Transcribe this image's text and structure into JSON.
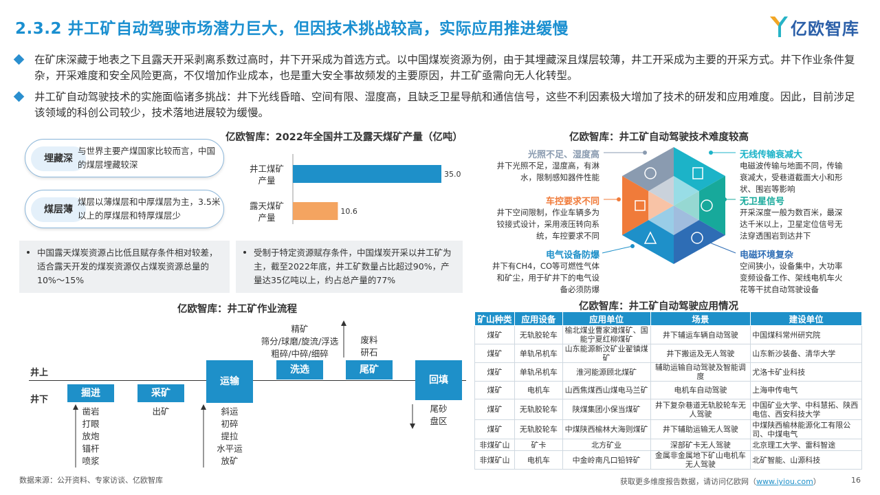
{
  "header": {
    "title": "2.3.2 井工矿自动驾驶市场潜力巨大，但因技术挑战较高，实际应用推进缓慢",
    "logo_text": "亿欧智库"
  },
  "bullets": [
    "在矿床深藏于地表之下且露天开采剥离系数过高时，井下开采成为首选方式。以中国煤炭资源为例，由于其埋藏深且煤层较薄，井工开采成为主要的开采方式。井下作业条件复杂，开采难度和安全风险更高，不仅增加作业成本，也是重大安全事故频发的主要原因，井工矿亟需向无人化转型。",
    "井工矿自动驾驶技术的实施面临诸多挑战：井下光线昏暗、空间有限、湿度高，且缺乏卫星导航和通信信号，这些不利因素极大增加了技术的研发和应用难度。因此，目前涉足该领域的科创公司较少，技术落地进展较为缓慢。"
  ],
  "reasons": [
    {
      "label": "埋藏深",
      "desc": "与世界主要产煤国家比较而言，中国的煤层埋藏较深"
    },
    {
      "label": "煤层薄",
      "desc": "煤层以薄煤层和中厚煤层为主，3.5米以上的厚煤层和特厚煤层少"
    }
  ],
  "notes": [
    "中国露天煤炭资源占比低且赋存条件相对较差，适合露天开发的煤炭资源仅占煤炭资源总量的10%～15%",
    "受制于特定资源赋存条件，中国煤炭开采以井工矿为主，截至2022年底，井工矿数量占比超过90%，产量达35亿吨以上，约占总产量的77%"
  ],
  "chart_data": {
    "type": "bar",
    "orientation": "horizontal",
    "title": "亿欧智库：2022年全国井工及露天煤矿产量（亿吨）",
    "categories": [
      "井工煤矿产量",
      "露天煤矿产量"
    ],
    "category_lines": [
      [
        "井工煤矿",
        "产量"
      ],
      [
        "露天煤矿",
        "产量"
      ]
    ],
    "values": [
      35.0,
      10.6
    ],
    "value_labels": [
      "35.0",
      "10.6"
    ],
    "colors": [
      "#1e90c9",
      "#f4a460"
    ],
    "xlim": [
      0,
      35
    ],
    "grid": false,
    "legend": "none"
  },
  "process": {
    "title": "亿欧智库：井工矿作业流程",
    "above_label": "井上",
    "below_label": "井下",
    "steps": [
      {
        "name": "掘进",
        "subs": [
          "凿岩",
          "打眼",
          "放炮",
          "锚杆",
          "喷浆"
        ]
      },
      {
        "name": "采矿",
        "subs": [
          "出矿"
        ]
      },
      {
        "name": "运输",
        "subs": [
          "斜运",
          "初碎",
          "提拉",
          "水平运",
          "放矿"
        ]
      },
      {
        "name": "洗选",
        "subs": [
          "精矿",
          "筛分/球磨/旋流/浮选",
          "粗碎/中碎/细碎"
        ]
      },
      {
        "name": "尾矿",
        "subs": [
          "废料",
          "研石"
        ]
      },
      {
        "name": "回填",
        "subs": [
          "尾砂",
          "盘区"
        ]
      }
    ]
  },
  "difficulty": {
    "title": "亿欧智库：井工矿自动驾驶技术难度较高",
    "items": [
      {
        "name": "光照不足、湿度高",
        "desc": "井下光照不足，湿度高，有淋水，限制感知器件性能",
        "color": "#8a9bb0",
        "icon": "light-icon"
      },
      {
        "name": "车控要求不同",
        "desc": "井下空间限制，作业车辆多为铰接式设计，采用液压转向系统，车控要求不同",
        "color": "#f07b3a",
        "icon": "steering-icon"
      },
      {
        "name": "电气设备防爆",
        "desc": "井下有CH4，CO等可燃性气体和矿尘，用于矿井下的电气设备必须防爆",
        "color": "#1e90c9",
        "icon": "explosion-icon"
      },
      {
        "name": "无线传输衰减大",
        "desc": "电磁波传输与地面不同，传输衰减大，受巷道截面大小和形状、围岩等影响",
        "color": "#1cb3c8",
        "icon": "signal-icon"
      },
      {
        "name": "无卫星信号",
        "desc": "开采深度一般为数百米，最深达千米以上，卫星定位信号无法穿透围岩到达井下",
        "color": "#17a99b",
        "icon": "satellite-icon"
      },
      {
        "name": "电磁环境复杂",
        "desc": "空间狭小，设备集中，大功率变频设备工作、架线电机车火花等干扰自动驾驶设备",
        "color": "#2e6db5",
        "icon": "emi-icon"
      }
    ]
  },
  "application": {
    "title": "亿欧智库：井工矿自动驾驶应用情况",
    "headers": [
      "矿山种类",
      "应用设备",
      "应用单位",
      "场景",
      "建设单位"
    ],
    "rows": [
      [
        "煤矿",
        "无轨胶轮车",
        "榆北煤业曹家滩煤矿、国能宁夏红柳煤矿",
        "井下辅运车辆自动驾驶",
        "中国煤科常州研究院"
      ],
      [
        "煤矿",
        "单轨吊机车",
        "山东能源新汶矿业翟镇煤矿",
        "井下搬运及无人驾驶",
        "山东新沙装备、清华大学"
      ],
      [
        "煤矿",
        "单轨吊机车",
        "淮河能源顾北煤矿",
        "辅助运输自动驾驶及智能调度",
        "尤洛卡矿业科技"
      ],
      [
        "煤矿",
        "电机车",
        "山西焦煤西山煤电马兰矿",
        "电机车自动驾驶",
        "上海申传电气"
      ],
      [
        "煤矿",
        "无轨胶轮车",
        "陕煤集团小保当煤矿",
        "井下复杂巷道无轨胶轮车无人驾驶",
        "中国矿业大学、中科慧拓、陕西电信、西安科技大学"
      ],
      [
        "煤矿",
        "无轨胶轮车",
        "中煤陕西榆林大海则煤矿",
        "井下辅助运输无人驾驶",
        "中煤陕西榆林能源化工有限公司、中煤电气"
      ],
      [
        "非煤矿山",
        "矿卡",
        "北方矿业",
        "深部矿卡无人驾驶",
        "北京理工大学、雷科智途"
      ],
      [
        "非煤矿山",
        "电机车",
        "中金岭南凡口铅锌矿",
        "金属非金属地下矿山电机车无人驾驶",
        "北矿智能、山源科技"
      ]
    ]
  },
  "footer": {
    "source": "数据来源：公开资料、专家访谈、亿欧智库",
    "more_prefix": "获取更多维度报告数据，请访问亿欧网（",
    "more_link": "www.iyiou.com",
    "more_suffix": "）",
    "page": "16"
  }
}
